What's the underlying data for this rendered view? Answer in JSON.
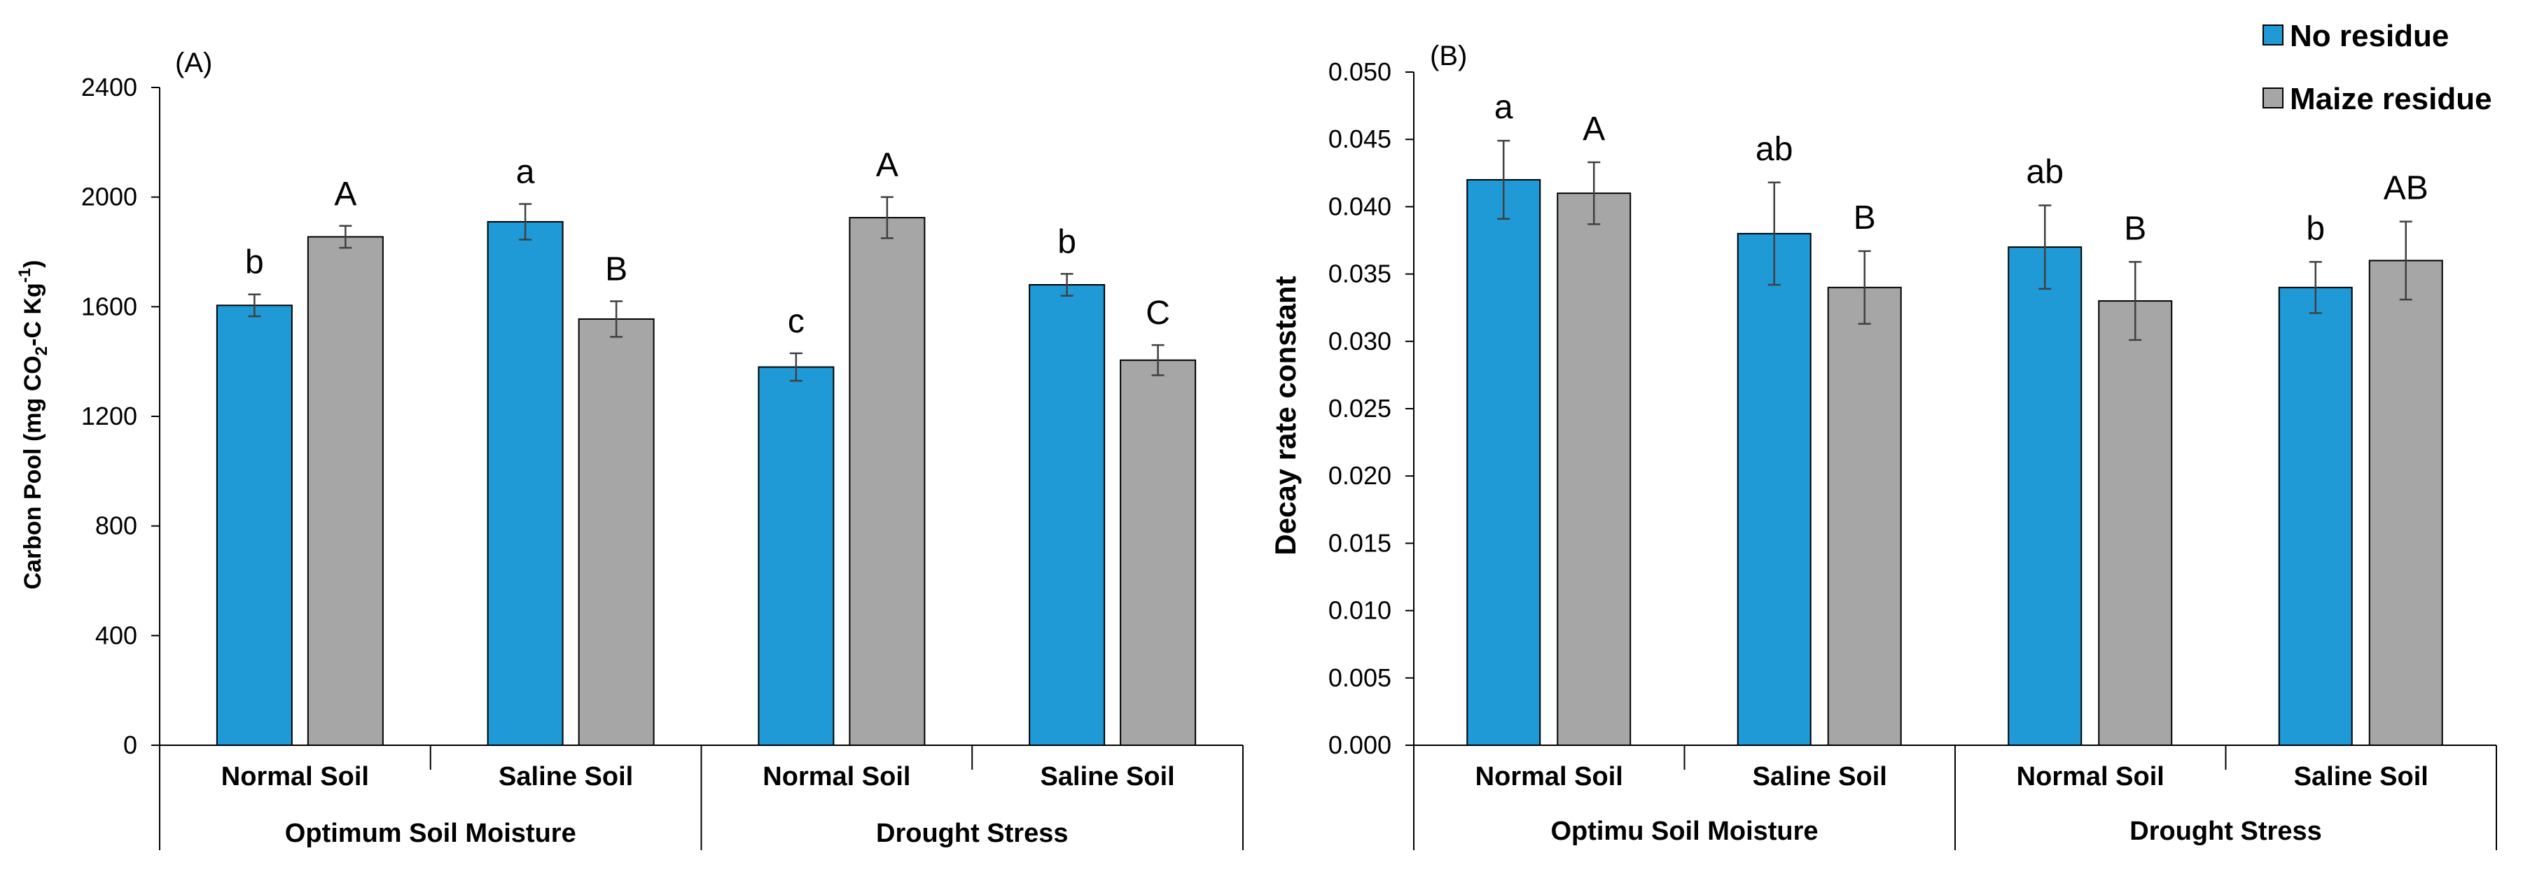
{
  "legend": {
    "items": [
      {
        "label": "No residue",
        "color": "#1f9ad6"
      },
      {
        "label": "Maize residue",
        "color": "#a6a6a6"
      }
    ],
    "placement": "top-right"
  },
  "chart_data": [
    {
      "type": "bar",
      "panel_label": "(A)",
      "ylabel_parts": [
        "Carbon Pool (mg CO",
        "2",
        "-C Kg",
        "-1",
        ")"
      ],
      "ylim": [
        0,
        2400
      ],
      "yticks": [
        0,
        400,
        800,
        1200,
        1600,
        2000,
        2400
      ],
      "tick_labels": [
        "0",
        "400",
        "800",
        "1200",
        "1600",
        "2000",
        "2400"
      ],
      "categories": [
        "Normal Soil",
        "Saline Soil",
        "Normal Soil",
        "Saline Soil"
      ],
      "groups": [
        {
          "label": "Optimum Soil Moisture",
          "categories": [
            0,
            1
          ]
        },
        {
          "label": "Drought Stress",
          "categories": [
            2,
            3
          ]
        }
      ],
      "series": [
        {
          "name": "No residue",
          "color": "#1f9ad6",
          "values": [
            1605,
            1910,
            1380,
            1680
          ],
          "errors": [
            40,
            65,
            50,
            40
          ],
          "letters": [
            "b",
            "a",
            "c",
            "b"
          ]
        },
        {
          "name": "Maize residue",
          "color": "#a6a6a6",
          "values": [
            1855,
            1555,
            1925,
            1405
          ],
          "errors": [
            40,
            65,
            75,
            55
          ],
          "letters": [
            "A",
            "B",
            "A",
            "C"
          ]
        }
      ],
      "grid": false
    },
    {
      "type": "bar",
      "panel_label": "(B)",
      "ylabel": "Decay rate  constant",
      "ylim": [
        0,
        0.05
      ],
      "yticks": [
        0,
        0.005,
        0.01,
        0.015,
        0.02,
        0.025,
        0.03,
        0.035,
        0.04,
        0.045,
        0.05
      ],
      "tick_labels": [
        "0.000",
        "0.005",
        "0.010",
        "0.015",
        "0.020",
        "0.025",
        "0.030",
        "0.035",
        "0.040",
        "0.045",
        "0.050"
      ],
      "categories": [
        "Normal Soil",
        "Saline Soil",
        "Normal Soil",
        "Saline Soil"
      ],
      "groups": [
        {
          "label": "Optimu Soil Moisture",
          "categories": [
            0,
            1
          ]
        },
        {
          "label": "Drought Stress",
          "categories": [
            2,
            3
          ]
        }
      ],
      "series": [
        {
          "name": "No residue",
          "color": "#1f9ad6",
          "values": [
            0.042,
            0.038,
            0.037,
            0.034
          ],
          "errors": [
            0.0029,
            0.0038,
            0.0031,
            0.0019
          ],
          "letters": [
            "a",
            "ab",
            "ab",
            "b"
          ]
        },
        {
          "name": "Maize residue",
          "color": "#a6a6a6",
          "values": [
            0.041,
            0.034,
            0.033,
            0.036
          ],
          "errors": [
            0.0023,
            0.0027,
            0.0029,
            0.0029
          ],
          "letters": [
            "A",
            "B",
            "B",
            "AB"
          ]
        }
      ],
      "grid": false
    }
  ]
}
